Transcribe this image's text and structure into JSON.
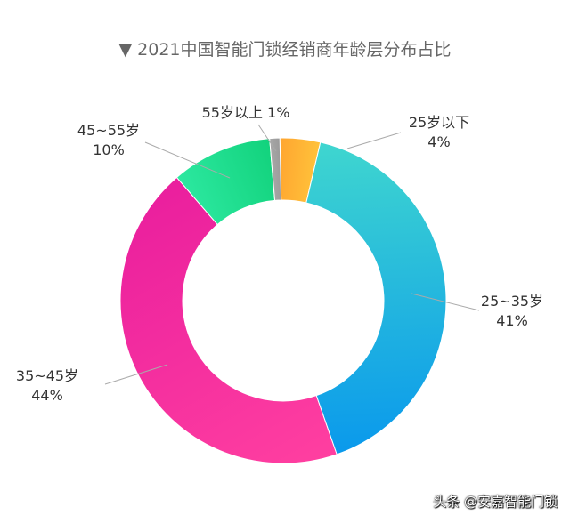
{
  "chart_data": {
    "type": "pie",
    "title": "2021中国智能门锁经销商年龄层分布占比",
    "title_marker": "▼",
    "donut": true,
    "slices": [
      {
        "label": "25岁以下",
        "value_label": "4%",
        "value": 4,
        "color": "#ffa530",
        "color2": "#ffc23a"
      },
      {
        "label": "25~35岁",
        "value_label": "41%",
        "value": 41,
        "color": "#3fd6cf",
        "color2": "#0a99ec"
      },
      {
        "label": "35~45岁",
        "value_label": "44%",
        "value": 44,
        "color": "#ff3fa0",
        "color2": "#ea1f9e"
      },
      {
        "label": "45~55岁",
        "value_label": "10%",
        "value": 10,
        "color": "#2ce8a0",
        "color2": "#12d27c"
      },
      {
        "label": "55岁以上",
        "value_label": "1%",
        "value": 1,
        "color": "#a8a8a8",
        "color2": "#9a9a9a"
      }
    ]
  },
  "watermark": "头条 @安嘉智能门锁"
}
